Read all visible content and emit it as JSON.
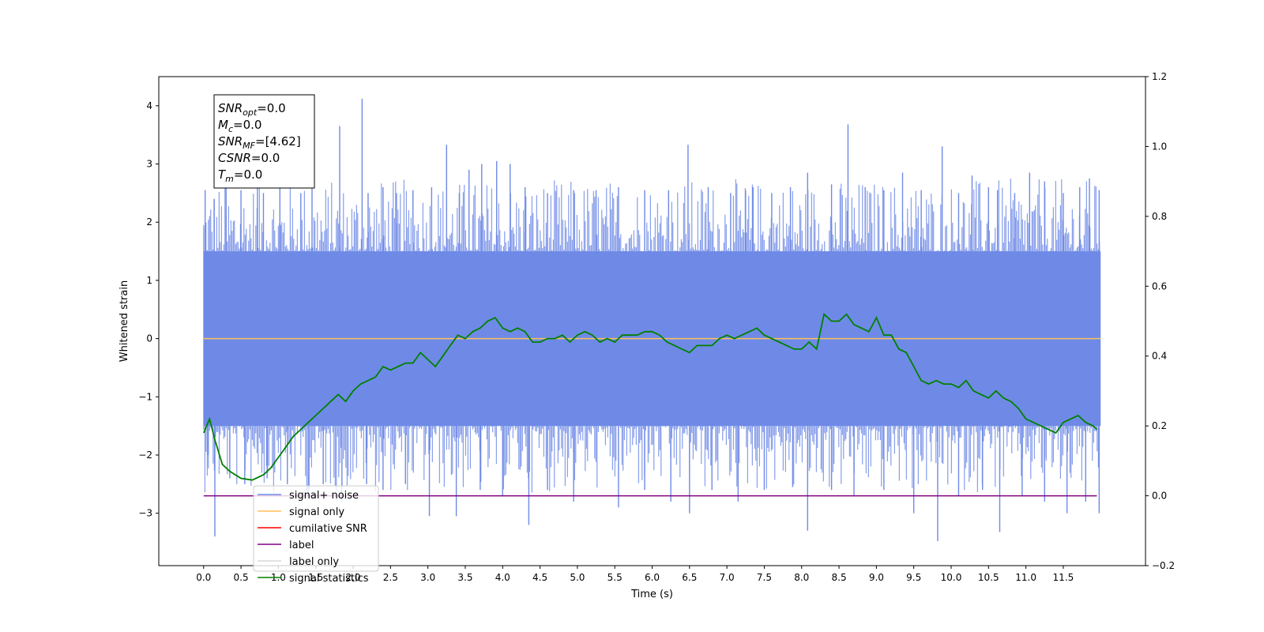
{
  "chart_data": {
    "type": "line",
    "xlabel": "Time (s)",
    "ylabel_left": "Whitened strain",
    "ylabel_right": "",
    "xlim": [
      -0.6,
      12.6
    ],
    "ylim_left": [
      -3.9,
      4.5
    ],
    "ylim_right": [
      -0.2,
      1.2
    ],
    "x_ticks": [
      0.0,
      0.5,
      1.0,
      1.5,
      2.0,
      2.5,
      3.0,
      3.5,
      4.0,
      4.5,
      5.0,
      5.5,
      6.0,
      6.5,
      7.0,
      7.5,
      8.0,
      8.5,
      9.0,
      9.5,
      10.0,
      10.5,
      11.0,
      11.5
    ],
    "x_tick_labels": [
      "0.0",
      "0.5",
      "1.0",
      "1.5",
      "2.0",
      "2.5",
      "3.0",
      "3.5",
      "4.0",
      "4.5",
      "5.0",
      "5.5",
      "6.0",
      "6.5",
      "7.0",
      "7.5",
      "8.0",
      "8.5",
      "9.0",
      "9.5",
      "10.0",
      "10.5",
      "11.0",
      "11.5"
    ],
    "y_left_ticks": [
      -3,
      -2,
      -1,
      0,
      1,
      2,
      3,
      4
    ],
    "y_left_tick_labels": [
      "−3",
      "−2",
      "−1",
      "0",
      "1",
      "2",
      "3",
      "4"
    ],
    "y_right_ticks": [
      -0.2,
      0.0,
      0.2,
      0.4,
      0.6,
      0.8,
      1.0,
      1.2
    ],
    "y_right_tick_labels": [
      "−0.2",
      "0.0",
      "0.2",
      "0.4",
      "0.6",
      "0.8",
      "1.0",
      "1.2"
    ],
    "grid": false,
    "legend_position": "lower-left",
    "legend": [
      {
        "label": "signal+ noise",
        "color": "#6f8ae6"
      },
      {
        "label": "signal only",
        "color": "#ffbf59"
      },
      {
        "label": "cumilative SNR",
        "color": "#ff0000"
      },
      {
        "label": "label",
        "color": "#800080"
      },
      {
        "label": "label only",
        "color": "#d8d8d8"
      },
      {
        "label": "signal statistics",
        "color": "#008000"
      }
    ],
    "annotation": {
      "lines": [
        {
          "sym": "SNR",
          "sub": "opt",
          "value": "=0.0"
        },
        {
          "sym": "M",
          "sub": "c",
          "value": "=0.0"
        },
        {
          "sym": "SNR",
          "sub": "MF",
          "value": "=[4.62]"
        },
        {
          "sym": "CSNR",
          "sub": "",
          "value": "=0.0"
        },
        {
          "sym": "T",
          "sub": "m",
          "value": "=0.0"
        }
      ]
    },
    "series": [
      {
        "name": "signal+ noise",
        "axis": "left",
        "color": "#6f8ae6",
        "render": "noise-band",
        "x_range": [
          0.0,
          12.0
        ],
        "band_upper": 1.5,
        "band_lower": -1.5,
        "peaks": [
          {
            "x": 0.02,
            "y": 2.55
          },
          {
            "x": 0.14,
            "y": 2.4
          },
          {
            "x": 0.3,
            "y": 2.9
          },
          {
            "x": 0.5,
            "y": 2.55
          },
          {
            "x": 0.72,
            "y": 2.9
          },
          {
            "x": 0.8,
            "y": 2.5
          },
          {
            "x": 1.02,
            "y": 2.75
          },
          {
            "x": 1.3,
            "y": 2.5
          },
          {
            "x": 1.45,
            "y": 2.6
          },
          {
            "x": 1.82,
            "y": 3.65
          },
          {
            "x": 2.12,
            "y": 4.12
          },
          {
            "x": 2.2,
            "y": 2.5
          },
          {
            "x": 2.4,
            "y": 2.6
          },
          {
            "x": 2.58,
            "y": 2.5
          },
          {
            "x": 2.8,
            "y": 2.55
          },
          {
            "x": 3.05,
            "y": 2.6
          },
          {
            "x": 3.25,
            "y": 3.33
          },
          {
            "x": 3.42,
            "y": 2.5
          },
          {
            "x": 3.55,
            "y": 2.9
          },
          {
            "x": 3.72,
            "y": 3.0
          },
          {
            "x": 3.92,
            "y": 3.05
          },
          {
            "x": 4.1,
            "y": 3.0
          },
          {
            "x": 4.3,
            "y": 2.6
          },
          {
            "x": 4.6,
            "y": 2.5
          },
          {
            "x": 4.95,
            "y": 2.55
          },
          {
            "x": 5.25,
            "y": 2.55
          },
          {
            "x": 5.55,
            "y": 2.6
          },
          {
            "x": 5.9,
            "y": 2.55
          },
          {
            "x": 6.22,
            "y": 2.55
          },
          {
            "x": 6.48,
            "y": 3.33
          },
          {
            "x": 6.75,
            "y": 2.6
          },
          {
            "x": 7.05,
            "y": 2.5
          },
          {
            "x": 7.25,
            "y": 2.55
          },
          {
            "x": 7.35,
            "y": 2.6
          },
          {
            "x": 7.6,
            "y": 2.5
          },
          {
            "x": 7.85,
            "y": 2.6
          },
          {
            "x": 8.08,
            "y": 2.85
          },
          {
            "x": 8.4,
            "y": 2.65
          },
          {
            "x": 8.62,
            "y": 3.68
          },
          {
            "x": 8.85,
            "y": 2.6
          },
          {
            "x": 9.1,
            "y": 2.55
          },
          {
            "x": 9.35,
            "y": 2.85
          },
          {
            "x": 9.6,
            "y": 2.55
          },
          {
            "x": 9.88,
            "y": 3.3
          },
          {
            "x": 10.1,
            "y": 2.5
          },
          {
            "x": 10.28,
            "y": 2.8
          },
          {
            "x": 10.5,
            "y": 2.6
          },
          {
            "x": 10.62,
            "y": 2.55
          },
          {
            "x": 10.85,
            "y": 2.5
          },
          {
            "x": 11.05,
            "y": 2.85
          },
          {
            "x": 11.25,
            "y": 2.7
          },
          {
            "x": 11.5,
            "y": 2.5
          },
          {
            "x": 11.72,
            "y": 2.6
          },
          {
            "x": 11.85,
            "y": 2.75
          },
          {
            "x": 11.98,
            "y": 2.55
          }
        ],
        "troughs": [
          {
            "x": 0.06,
            "y": -2.0
          },
          {
            "x": 0.15,
            "y": -3.4
          },
          {
            "x": 0.35,
            "y": -2.4
          },
          {
            "x": 0.55,
            "y": -2.5
          },
          {
            "x": 0.85,
            "y": -2.4
          },
          {
            "x": 1.12,
            "y": -2.5
          },
          {
            "x": 1.4,
            "y": -2.7
          },
          {
            "x": 1.6,
            "y": -2.5
          },
          {
            "x": 1.85,
            "y": -2.8
          },
          {
            "x": 2.18,
            "y": -2.5
          },
          {
            "x": 2.4,
            "y": -2.6
          },
          {
            "x": 2.7,
            "y": -2.5
          },
          {
            "x": 3.02,
            "y": -3.05
          },
          {
            "x": 3.38,
            "y": -3.05
          },
          {
            "x": 3.7,
            "y": -2.6
          },
          {
            "x": 4.0,
            "y": -2.7
          },
          {
            "x": 4.35,
            "y": -3.2
          },
          {
            "x": 4.6,
            "y": -2.6
          },
          {
            "x": 4.95,
            "y": -2.8
          },
          {
            "x": 5.55,
            "y": -2.9
          },
          {
            "x": 5.9,
            "y": -2.6
          },
          {
            "x": 6.25,
            "y": -2.8
          },
          {
            "x": 6.5,
            "y": -3.0
          },
          {
            "x": 6.8,
            "y": -2.6
          },
          {
            "x": 7.15,
            "y": -2.8
          },
          {
            "x": 7.5,
            "y": -2.6
          },
          {
            "x": 7.88,
            "y": -2.55
          },
          {
            "x": 8.08,
            "y": -3.3
          },
          {
            "x": 8.4,
            "y": -2.6
          },
          {
            "x": 8.7,
            "y": -2.7
          },
          {
            "x": 9.1,
            "y": -2.6
          },
          {
            "x": 9.5,
            "y": -3.0
          },
          {
            "x": 9.82,
            "y": -3.48
          },
          {
            "x": 10.1,
            "y": -2.7
          },
          {
            "x": 10.42,
            "y": -2.6
          },
          {
            "x": 10.65,
            "y": -3.32
          },
          {
            "x": 10.95,
            "y": -2.7
          },
          {
            "x": 11.25,
            "y": -2.8
          },
          {
            "x": 11.55,
            "y": -3.0
          },
          {
            "x": 11.8,
            "y": -2.8
          },
          {
            "x": 11.98,
            "y": -3.0
          }
        ]
      },
      {
        "name": "signal only",
        "axis": "left",
        "color": "#ffbf59",
        "x": [
          0.0,
          12.0
        ],
        "y": [
          0.0,
          0.0
        ]
      },
      {
        "name": "label",
        "axis": "right",
        "color": "#800080",
        "x": [
          0.0,
          11.95
        ],
        "y": [
          0.0,
          0.0
        ]
      },
      {
        "name": "signal statistics",
        "axis": "right",
        "color": "#008000",
        "x": [
          0.0,
          0.08,
          0.15,
          0.25,
          0.35,
          0.5,
          0.65,
          0.8,
          0.9,
          1.0,
          1.1,
          1.2,
          1.3,
          1.4,
          1.5,
          1.6,
          1.7,
          1.8,
          1.9,
          2.0,
          2.1,
          2.2,
          2.3,
          2.4,
          2.5,
          2.6,
          2.7,
          2.8,
          2.9,
          3.0,
          3.1,
          3.2,
          3.3,
          3.4,
          3.5,
          3.6,
          3.7,
          3.8,
          3.9,
          4.0,
          4.1,
          4.2,
          4.3,
          4.4,
          4.5,
          4.6,
          4.7,
          4.8,
          4.9,
          5.0,
          5.1,
          5.2,
          5.3,
          5.4,
          5.5,
          5.6,
          5.7,
          5.8,
          5.9,
          6.0,
          6.1,
          6.2,
          6.3,
          6.4,
          6.5,
          6.6,
          6.7,
          6.8,
          6.9,
          7.0,
          7.1,
          7.2,
          7.3,
          7.4,
          7.5,
          7.6,
          7.7,
          7.8,
          7.9,
          8.0,
          8.1,
          8.2,
          8.3,
          8.4,
          8.5,
          8.6,
          8.7,
          8.8,
          8.9,
          9.0,
          9.1,
          9.2,
          9.3,
          9.4,
          9.5,
          9.6,
          9.7,
          9.8,
          9.9,
          10.0,
          10.1,
          10.2,
          10.3,
          10.4,
          10.5,
          10.6,
          10.7,
          10.8,
          10.9,
          11.0,
          11.1,
          11.2,
          11.3,
          11.4,
          11.5,
          11.6,
          11.7,
          11.8,
          11.9,
          11.95
        ],
        "y": [
          0.18,
          0.22,
          0.16,
          0.09,
          0.07,
          0.05,
          0.045,
          0.06,
          0.08,
          0.11,
          0.14,
          0.17,
          0.19,
          0.21,
          0.23,
          0.25,
          0.27,
          0.29,
          0.27,
          0.3,
          0.32,
          0.33,
          0.34,
          0.37,
          0.36,
          0.37,
          0.38,
          0.38,
          0.41,
          0.39,
          0.37,
          0.4,
          0.43,
          0.46,
          0.45,
          0.47,
          0.48,
          0.5,
          0.51,
          0.48,
          0.47,
          0.48,
          0.47,
          0.44,
          0.44,
          0.45,
          0.45,
          0.46,
          0.44,
          0.46,
          0.47,
          0.46,
          0.44,
          0.45,
          0.44,
          0.46,
          0.46,
          0.46,
          0.47,
          0.47,
          0.46,
          0.44,
          0.43,
          0.42,
          0.41,
          0.43,
          0.43,
          0.43,
          0.45,
          0.46,
          0.45,
          0.46,
          0.47,
          0.48,
          0.46,
          0.45,
          0.44,
          0.43,
          0.42,
          0.42,
          0.44,
          0.42,
          0.52,
          0.5,
          0.5,
          0.52,
          0.49,
          0.48,
          0.47,
          0.51,
          0.46,
          0.46,
          0.42,
          0.41,
          0.37,
          0.33,
          0.32,
          0.33,
          0.32,
          0.32,
          0.31,
          0.33,
          0.3,
          0.29,
          0.28,
          0.3,
          0.28,
          0.27,
          0.25,
          0.22,
          0.21,
          0.2,
          0.19,
          0.18,
          0.21,
          0.22,
          0.23,
          0.21,
          0.2,
          0.19
        ]
      }
    ]
  }
}
